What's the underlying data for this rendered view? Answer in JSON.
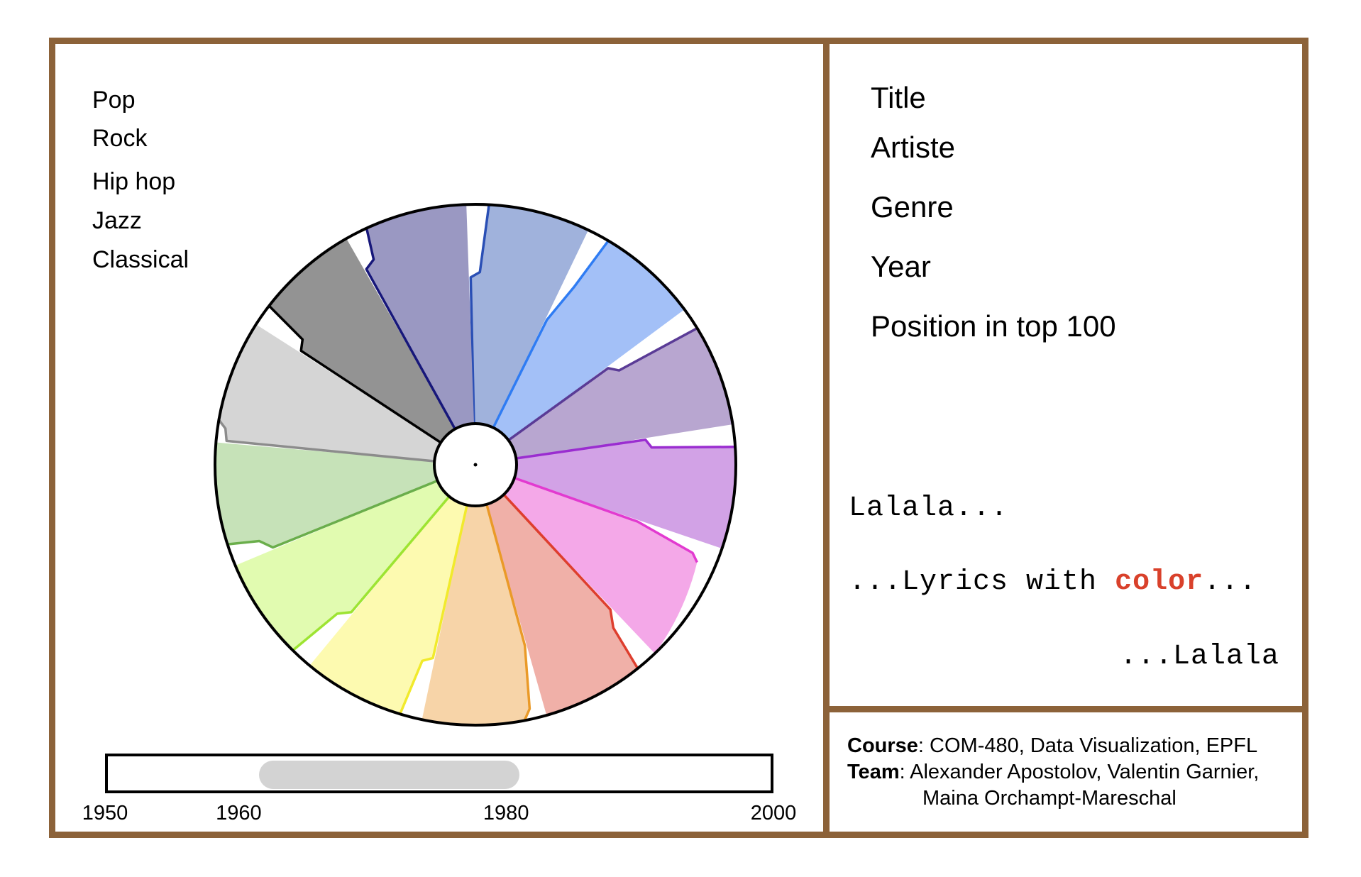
{
  "legend": {
    "genres": [
      "Pop",
      "Rock",
      "Hip hop",
      "Jazz",
      "Classical"
    ]
  },
  "wheel": {
    "segments": [
      {
        "fill": "#a0b2dc",
        "stroke": "#2a4fb5"
      },
      {
        "fill": "#a3c0f7",
        "stroke": "#2f7cf3"
      },
      {
        "fill": "#b8a6d0",
        "stroke": "#5a3b96"
      },
      {
        "fill": "#d2a2e6",
        "stroke": "#9a2dd0"
      },
      {
        "fill": "#f4a8e8",
        "stroke": "#e23ad0"
      },
      {
        "fill": "#f0b0a8",
        "stroke": "#de3e2e"
      },
      {
        "fill": "#f7d4a8",
        "stroke": "#ea9a28"
      },
      {
        "fill": "#fdfab0",
        "stroke": "#f1ea2c"
      },
      {
        "fill": "#e1fbb0",
        "stroke": "#9de432"
      },
      {
        "fill": "#c6e2b8",
        "stroke": "#6aae4b"
      },
      {
        "fill": "#d5d5d5",
        "stroke": "#8c8c8c"
      },
      {
        "fill": "#939393",
        "stroke": "#000000"
      },
      {
        "fill": "#9a98c2",
        "stroke": "#17177a"
      }
    ]
  },
  "timeline": {
    "min": 1950,
    "max": 2000,
    "ticks": [
      "1950",
      "1960",
      "1980",
      "2000"
    ],
    "tick_values": [
      1950,
      1960,
      1980,
      2000
    ],
    "selected_start": 1961.5,
    "selected_end": 1981
  },
  "info": {
    "title_label": "Title",
    "artist_label": "Artiste",
    "genre_label": "Genre",
    "year_label": "Year",
    "position_label": "Position in top 100"
  },
  "lyrics": {
    "line1": "Lalala...",
    "line2_prefix": "...Lyrics with ",
    "line2_highlight": "color",
    "line2_suffix": "...",
    "line3": "...Lalala",
    "highlight_color": "#d9412b"
  },
  "credits": {
    "course_label": "Course",
    "course_value": ": COM-480, Data Visualization, EPFL",
    "team_label": "Team",
    "team_value": ": Alexander Apostolov, Valentin Garnier,",
    "team_value_2": "Maina Orchampt-Mareschal"
  },
  "colors": {
    "frame": "#8c6239"
  }
}
